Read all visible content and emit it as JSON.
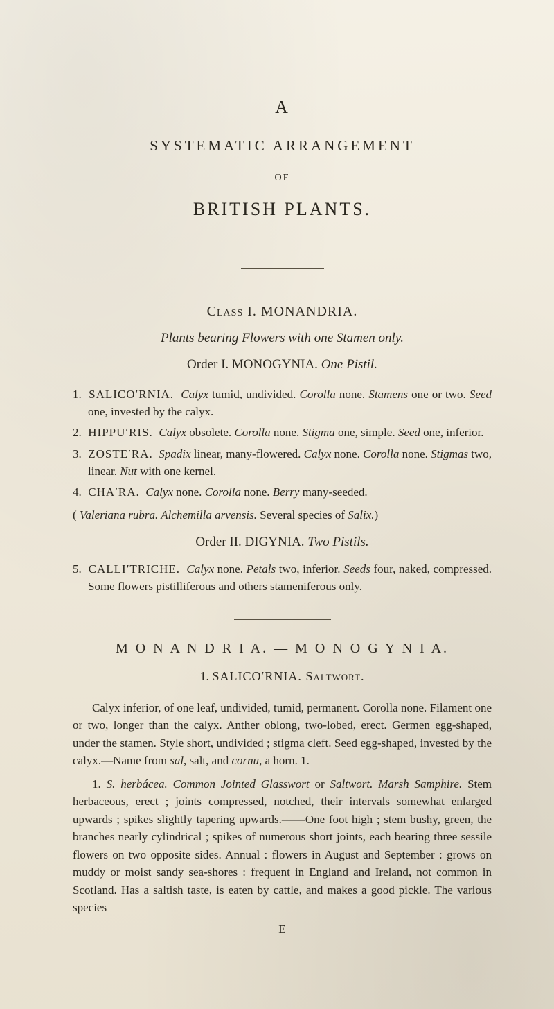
{
  "heading": {
    "a": "A",
    "systematic": "SYSTEMATIC   ARRANGEMENT",
    "of": "OF",
    "british": "BRITISH   PLANTS."
  },
  "class1": {
    "line": "Class I.   MONANDRIA.",
    "subtitle": "Plants bearing Flowers with one Stamen only.",
    "order": "Order I.  MONOGYNIA.   One Pistil."
  },
  "entries": {
    "e1": {
      "num": "1.",
      "genus": "SALICO′RNIA.",
      "body_a": "Calyx",
      "body_b": " tumid, undivided.  ",
      "body_c": "Corolla",
      "body_d": " none.  ",
      "body_e": "Stamens",
      "body_f": " one or two.  ",
      "body_g": "Seed",
      "body_h": " one, invested by the calyx."
    },
    "e2": {
      "num": "2.",
      "genus": "HIPPU′RIS.",
      "body_a": "Calyx",
      "body_b": " obsolete.   ",
      "body_c": "Corolla",
      "body_d": " none.   ",
      "body_e": "Stigma",
      "body_f": " one, simple.  ",
      "body_g": "Seed",
      "body_h": " one, inferior."
    },
    "e3": {
      "num": "3.",
      "genus": "ZOSTE′RA.",
      "body_a": "Spadix",
      "body_b": " linear, many-flowered.  ",
      "body_c": "Calyx",
      "body_d": " none.  ",
      "body_e": "Corolla",
      "body_f": " none.  ",
      "body_g": "Stigmas",
      "body_h": " two, linear.  ",
      "body_i": "Nut",
      "body_j": " with one kernel."
    },
    "e4": {
      "num": "4.",
      "genus": "CHA′RA.",
      "body_a": "Calyx",
      "body_b": " none.  ",
      "body_c": "Corolla",
      "body_d": " none.  ",
      "body_e": "Berry",
      "body_f": " many-seeded."
    }
  },
  "paren": {
    "open": "( ",
    "a": "Valeriana rubra.   Alchemilla arvensis.",
    "mid": "   Several species of ",
    "b": "Salix.",
    "close": ")"
  },
  "order2": {
    "line": "Order II.  DIGYNIA.   Two Pistils."
  },
  "entry5": {
    "num": "5.",
    "genus": "CALLI′TRICHE.",
    "a": "Calyx",
    "b": " none.  ",
    "c": "Petals",
    "d": " two, inferior.  ",
    "e": "Seeds",
    "f": " four, naked, compressed.  Some flowers pistilliferous and others stameniferous only."
  },
  "mono": {
    "head": "M O N A N D R I A. — M O N O G Y N I A.",
    "sub_num": "1.  ",
    "sub_genus": "SALICO′RNIA.",
    "sub_eng": "   Saltwort."
  },
  "para1": {
    "text": "Calyx inferior, of one leaf, undivided, tumid, permanent.  Corolla none.  Filament one or two, longer than the calyx.  Anther oblong, two-lobed, erect.  Germen egg-shaped, under the stamen.  Style short, undivided ; stigma cleft.  Seed egg-shaped, invested by the calyx.—Name from ",
    "i1": "sal",
    "mid": ", salt, and ",
    "i2": "cornu",
    "tail": ", a horn.            1."
  },
  "para2": {
    "lead": "1. ",
    "sp": "S. herbácea.",
    "mid1": "   ",
    "common": "Common Jointed Glasswort",
    "or": " or ",
    "common2": "Saltwort.   Marsh Samphire.",
    "body": "   Stem herbaceous, erect ; joints compressed, notched, their intervals somewhat enlarged upwards ; spikes slightly tapering upwards.——One foot high ; stem bushy, green, the branches nearly cylindrical ; spikes of numerous short joints, each bearing three sessile flowers on two opposite sides.  Annual : flowers in August and September :  grows on muddy or moist sandy sea-shores :  frequent in England and Ireland, not common in Scotland.  Has a saltish taste, is eaten by cattle, and makes a good pickle.  The various species"
  },
  "sig": "E"
}
